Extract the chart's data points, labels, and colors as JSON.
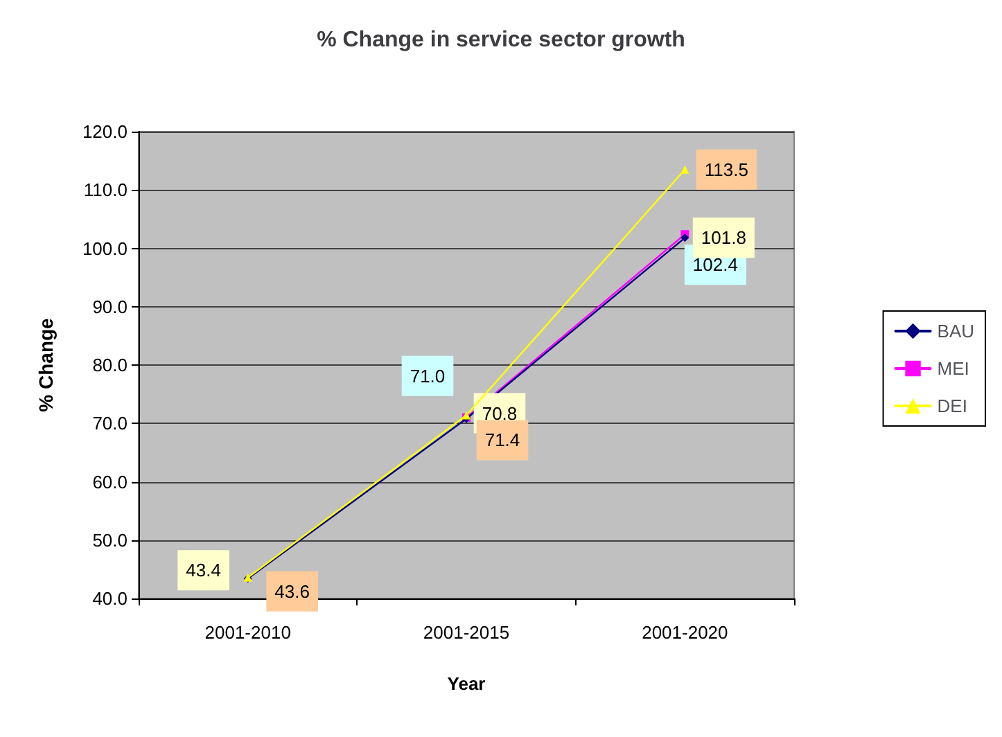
{
  "chart_data": {
    "type": "line",
    "title": "% Change in service sector growth",
    "xlabel": "Year",
    "ylabel": "% Change",
    "categories": [
      "2001-2010",
      "2001-2015",
      "2001-2020"
    ],
    "series": [
      {
        "name": "BAU",
        "color": "#000080",
        "marker": "diamond",
        "values": [
          43.4,
          70.8,
          101.8
        ],
        "value_labels": [
          "43.4",
          "70.8",
          "101.8"
        ]
      },
      {
        "name": "MEI",
        "color": "#ff00ff",
        "marker": "square",
        "values": [
          null,
          71.0,
          102.4
        ],
        "value_labels": [
          null,
          "71.0",
          "102.4"
        ]
      },
      {
        "name": "DEI",
        "color": "#ffff00",
        "marker": "triangle",
        "values": [
          43.6,
          71.4,
          113.5
        ],
        "value_labels": [
          "43.6",
          "71.4",
          "113.5"
        ]
      }
    ],
    "ylim": [
      40,
      120
    ],
    "yticks": [
      {
        "value": 40,
        "label": "40.0"
      },
      {
        "value": 50,
        "label": "50.0"
      },
      {
        "value": 60,
        "label": "60.0"
      },
      {
        "value": 70,
        "label": "70.0"
      },
      {
        "value": 80,
        "label": "80.0"
      },
      {
        "value": 90,
        "label": "90.0"
      },
      {
        "value": 100,
        "label": "100.0"
      },
      {
        "value": 110,
        "label": "110.0"
      },
      {
        "value": 120,
        "label": "120.0"
      }
    ],
    "grid": "y",
    "legend": "right",
    "line_style": "solid"
  }
}
